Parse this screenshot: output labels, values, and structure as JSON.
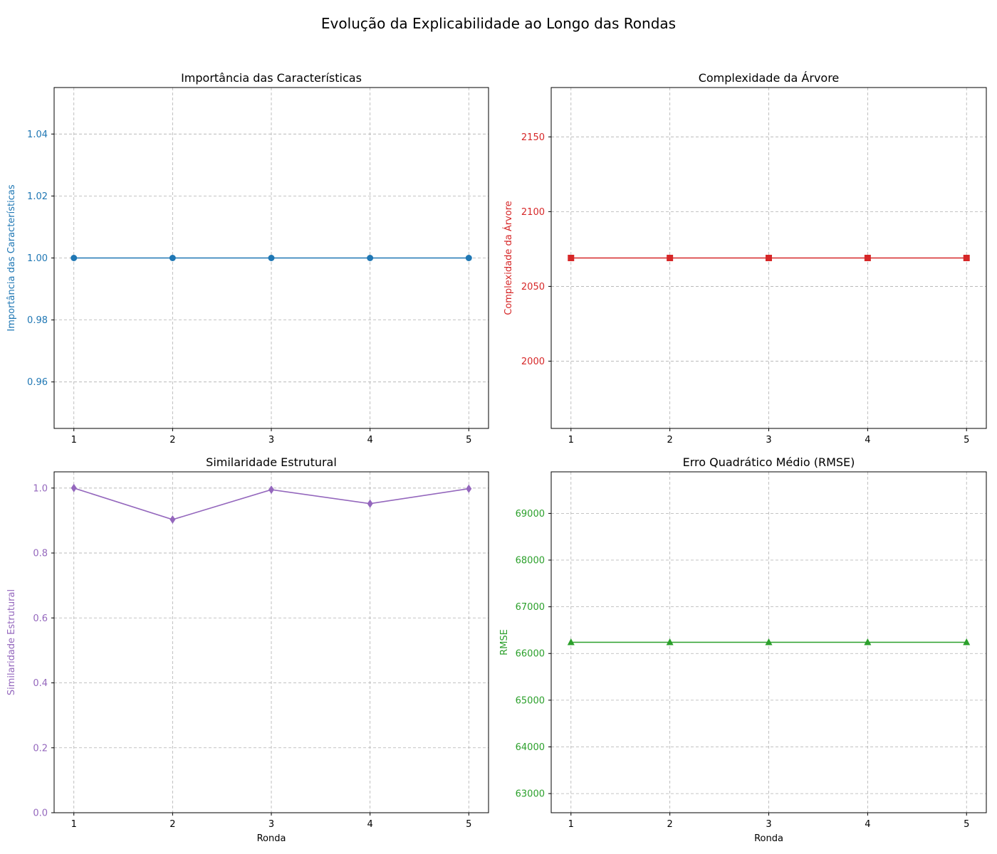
{
  "figure": {
    "title": "Evolução da Explicabilidade ao Longo das Rondas"
  },
  "chart_data": [
    {
      "type": "line",
      "title": "Importância das Características",
      "xlabel": "",
      "ylabel": "Importância das Características",
      "x": [
        1,
        2,
        3,
        4,
        5
      ],
      "series": [
        {
          "values": [
            1.0,
            1.0,
            1.0,
            1.0,
            1.0
          ]
        }
      ],
      "xlim": [
        0.8,
        5.2
      ],
      "ylim": [
        0.945,
        1.055
      ],
      "xticks": [
        1,
        2,
        3,
        4,
        5
      ],
      "yticks": [
        0.96,
        0.98,
        1.0,
        1.02,
        1.04
      ],
      "ytick_labels": [
        "0.96",
        "0.98",
        "1.00",
        "1.02",
        "1.04"
      ],
      "color": "#1f77b4",
      "marker": "circle",
      "grid": true
    },
    {
      "type": "line",
      "title": "Complexidade da Árvore",
      "xlabel": "",
      "ylabel": "Complexidade da Árvore",
      "x": [
        1,
        2,
        3,
        4,
        5
      ],
      "series": [
        {
          "values": [
            2069,
            2069,
            2069,
            2069,
            2069
          ]
        }
      ],
      "xlim": [
        0.8,
        5.2
      ],
      "ylim": [
        1955,
        2183
      ],
      "xticks": [
        1,
        2,
        3,
        4,
        5
      ],
      "yticks": [
        2000,
        2050,
        2100,
        2150
      ],
      "ytick_labels": [
        "2000",
        "2050",
        "2100",
        "2150"
      ],
      "color": "#d62728",
      "marker": "square",
      "grid": true
    },
    {
      "type": "line",
      "title": "Similaridade Estrutural",
      "xlabel": "Ronda",
      "ylabel": "Similaridade Estrutural",
      "x": [
        1,
        2,
        3,
        4,
        5
      ],
      "series": [
        {
          "values": [
            1.0,
            0.903,
            0.995,
            0.952,
            0.998
          ]
        }
      ],
      "xlim": [
        0.8,
        5.2
      ],
      "ylim": [
        0.0,
        1.05
      ],
      "xticks": [
        1,
        2,
        3,
        4,
        5
      ],
      "yticks": [
        0.0,
        0.2,
        0.4,
        0.6,
        0.8,
        1.0
      ],
      "ytick_labels": [
        "0.0",
        "0.2",
        "0.4",
        "0.6",
        "0.8",
        "1.0"
      ],
      "color": "#9467bd",
      "marker": "diamond",
      "grid": true
    },
    {
      "type": "line",
      "title": "Erro Quadrático Médio (RMSE)",
      "xlabel": "Ronda",
      "ylabel": "RMSE",
      "x": [
        1,
        2,
        3,
        4,
        5
      ],
      "series": [
        {
          "values": [
            66240,
            66240,
            66240,
            66240,
            66240
          ]
        }
      ],
      "xlim": [
        0.8,
        5.2
      ],
      "ylim": [
        62590,
        69890
      ],
      "xticks": [
        1,
        2,
        3,
        4,
        5
      ],
      "yticks": [
        63000,
        64000,
        65000,
        66000,
        67000,
        68000,
        69000
      ],
      "ytick_labels": [
        "63000",
        "64000",
        "65000",
        "66000",
        "67000",
        "68000",
        "69000"
      ],
      "color": "#2ca02c",
      "marker": "triangle",
      "grid": true
    }
  ]
}
